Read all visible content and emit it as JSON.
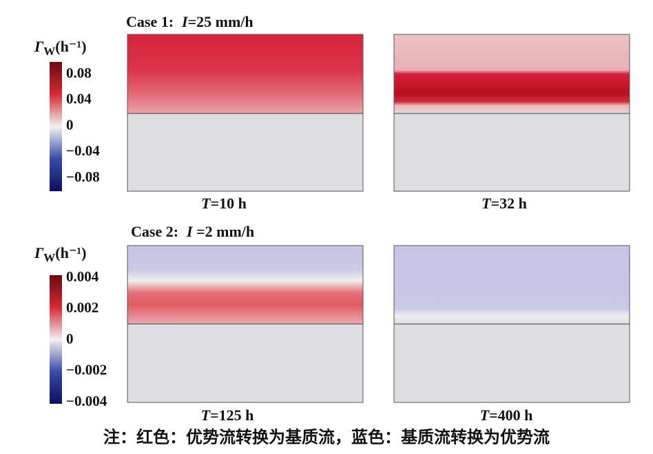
{
  "cases": [
    {
      "label": "Case 1:",
      "symbol": "I",
      "value": "=25 mm/h",
      "legend": {
        "symbol": "Γ",
        "subscript": "W",
        "unit": "(h⁻¹)",
        "ticks": [
          "0.08",
          "0.04",
          "0",
          "−0.04",
          "−0.08"
        ]
      },
      "panels": [
        {
          "symbol": "T",
          "value": "=10 h"
        },
        {
          "symbol": "T",
          "value": "=32 h"
        }
      ]
    },
    {
      "label": "Case 2:",
      "symbol": "I",
      "value": " =2 mm/h",
      "legend": {
        "symbol": "Γ",
        "subscript": "W",
        "unit": "(h⁻¹)",
        "ticks": [
          "0.004",
          "0.002",
          "0",
          "−0.002",
          "−0.004"
        ]
      },
      "panels": [
        {
          "symbol": "T",
          "value": "=125 h"
        },
        {
          "symbol": "T",
          "value": "=400 h"
        }
      ]
    }
  ],
  "note": "注：红色：优势流转换为基质流，蓝色：基质流转换为优势流"
}
